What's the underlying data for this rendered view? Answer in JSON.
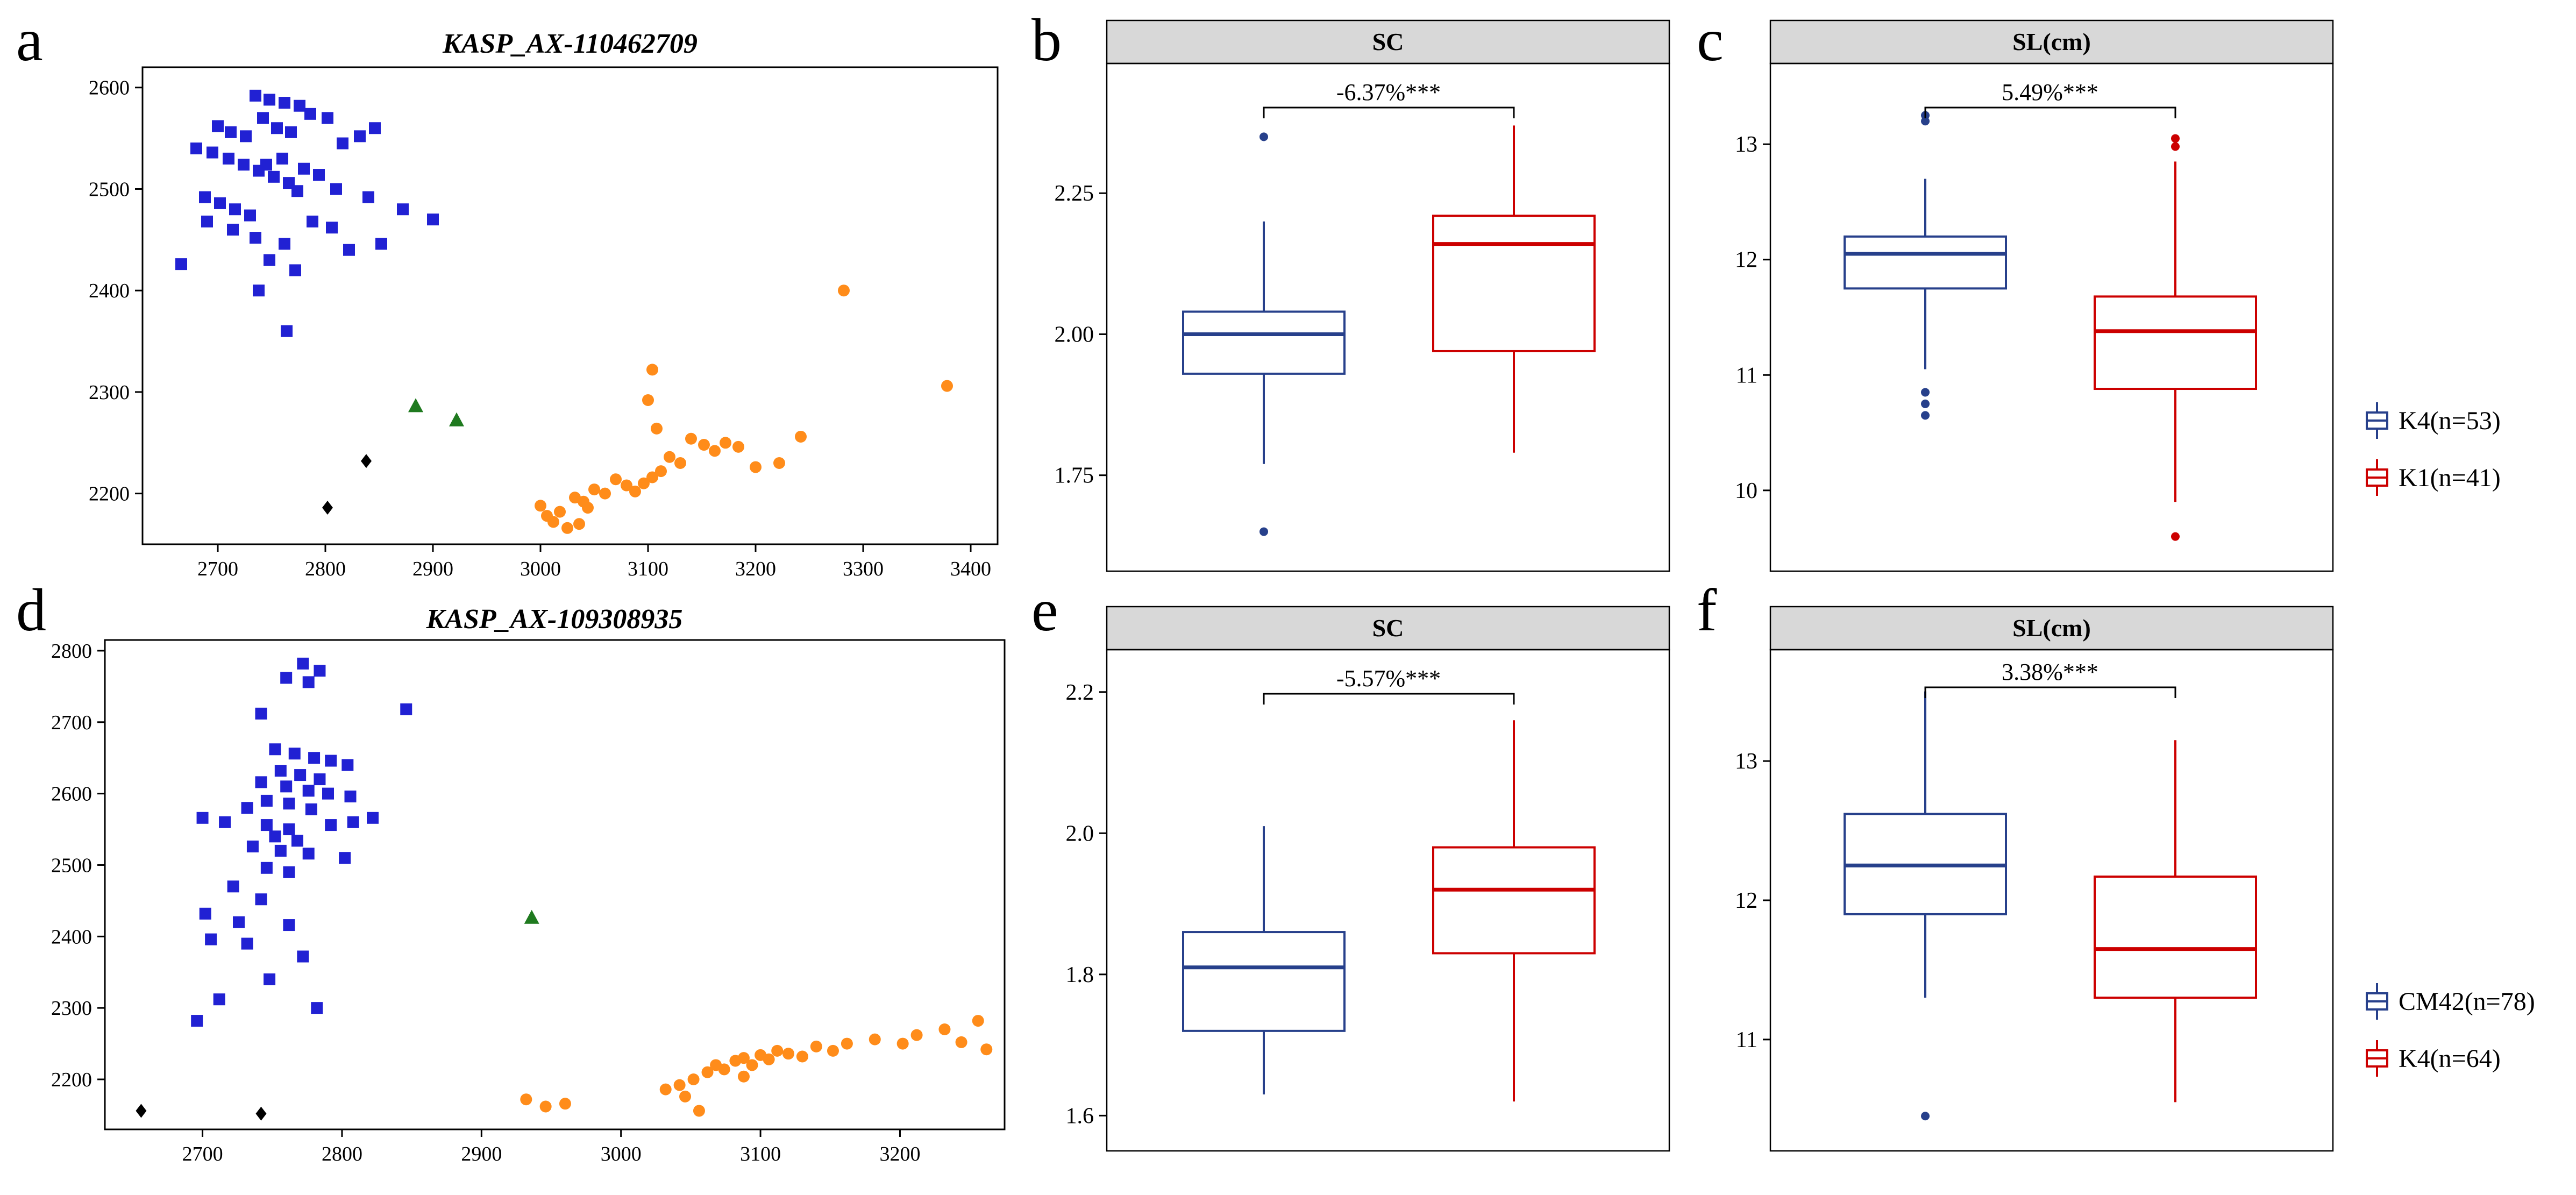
{
  "figure": {
    "letters": {
      "a": "a",
      "b": "b",
      "c": "c",
      "d": "d",
      "e": "e",
      "f": "f"
    },
    "colors": {
      "scatter_blue": "#2121d3",
      "scatter_orange": "#ff8c1a",
      "scatter_green": "#1f7a1f",
      "scatter_black": "#000000",
      "box_blue": "#27408b",
      "box_red": "#cc0000",
      "header_grey": "#d8d8d8"
    },
    "legend_top": {
      "entries": [
        {
          "label": "K4(n=53)",
          "color": "#27408b"
        },
        {
          "label": "K1(n=41)",
          "color": "#cc0000"
        }
      ]
    },
    "legend_bottom": {
      "entries": [
        {
          "label": "CM42(n=78)",
          "color": "#27408b"
        },
        {
          "label": "K4(n=64)",
          "color": "#cc0000"
        }
      ]
    }
  },
  "chart_data": [
    {
      "panel": "a",
      "type": "scatter",
      "title": "KASP_AX-110462709",
      "xlim": [
        2630,
        3425
      ],
      "ylim": [
        2150,
        2620
      ],
      "xticks": [
        2700,
        2800,
        2900,
        3000,
        3100,
        3200,
        3300,
        3400
      ],
      "yticks": [
        2200,
        2300,
        2400,
        2500,
        2600
      ],
      "series": [
        {
          "name": "blue-squares",
          "marker": "square",
          "color": "#2121d3",
          "points": [
            [
              2735,
              2592
            ],
            [
              2748,
              2588
            ],
            [
              2762,
              2585
            ],
            [
              2776,
              2582
            ],
            [
              2742,
              2570
            ],
            [
              2700,
              2562
            ],
            [
              2712,
              2556
            ],
            [
              2726,
              2552
            ],
            [
              2755,
              2560
            ],
            [
              2768,
              2556
            ],
            [
              2786,
              2574
            ],
            [
              2802,
              2570
            ],
            [
              2816,
              2545
            ],
            [
              2832,
              2552
            ],
            [
              2846,
              2560
            ],
            [
              2680,
              2540
            ],
            [
              2695,
              2536
            ],
            [
              2710,
              2530
            ],
            [
              2724,
              2524
            ],
            [
              2738,
              2518
            ],
            [
              2752,
              2512
            ],
            [
              2766,
              2506
            ],
            [
              2780,
              2520
            ],
            [
              2794,
              2514
            ],
            [
              2810,
              2500
            ],
            [
              2840,
              2492
            ],
            [
              2872,
              2480
            ],
            [
              2900,
              2470
            ],
            [
              2688,
              2492
            ],
            [
              2702,
              2486
            ],
            [
              2716,
              2480
            ],
            [
              2730,
              2474
            ],
            [
              2745,
              2524
            ],
            [
              2760,
              2530
            ],
            [
              2774,
              2498
            ],
            [
              2690,
              2468
            ],
            [
              2714,
              2460
            ],
            [
              2735,
              2452
            ],
            [
              2762,
              2446
            ],
            [
              2788,
              2468
            ],
            [
              2806,
              2462
            ],
            [
              2822,
              2440
            ],
            [
              2852,
              2446
            ],
            [
              2748,
              2430
            ],
            [
              2772,
              2420
            ],
            [
              2666,
              2426
            ],
            [
              2738,
              2400
            ],
            [
              2764,
              2360
            ]
          ]
        },
        {
          "name": "orange-circles",
          "marker": "circle",
          "color": "#ff8c1a",
          "points": [
            [
              3000,
              2188
            ],
            [
              3006,
              2178
            ],
            [
              3012,
              2172
            ],
            [
              3018,
              2182
            ],
            [
              3025,
              2166
            ],
            [
              3032,
              2196
            ],
            [
              3040,
              2192
            ],
            [
              3050,
              2204
            ],
            [
              3060,
              2200
            ],
            [
              3070,
              2214
            ],
            [
              3080,
              2208
            ],
            [
              3088,
              2202
            ],
            [
              3096,
              2210
            ],
            [
              3104,
              2216
            ],
            [
              3112,
              2222
            ],
            [
              3120,
              2236
            ],
            [
              3130,
              2230
            ],
            [
              3108,
              2264
            ],
            [
              3100,
              2292
            ],
            [
              3104,
              2322
            ],
            [
              3140,
              2254
            ],
            [
              3152,
              2248
            ],
            [
              3162,
              2242
            ],
            [
              3172,
              2250
            ],
            [
              3184,
              2246
            ],
            [
              3200,
              2226
            ],
            [
              3222,
              2230
            ],
            [
              3242,
              2256
            ],
            [
              3282,
              2400
            ],
            [
              3378,
              2306
            ],
            [
              3036,
              2170
            ],
            [
              3044,
              2186
            ]
          ]
        },
        {
          "name": "green-triangles",
          "marker": "triangle",
          "color": "#1f7a1f",
          "points": [
            [
              2884,
              2286
            ],
            [
              2922,
              2272
            ]
          ]
        },
        {
          "name": "black-diamonds",
          "marker": "diamond",
          "color": "#000000",
          "points": [
            [
              2802,
              2186
            ],
            [
              2838,
              2232
            ]
          ]
        }
      ]
    },
    {
      "panel": "b",
      "type": "box",
      "title": "SC",
      "annotation": "-6.37%***",
      "ylim": [
        1.58,
        2.48
      ],
      "yticks": [
        1.75,
        2.0,
        2.25
      ],
      "ytick_labels": [
        "1.75",
        "2.00",
        "2.25"
      ],
      "groups": [
        {
          "name": "K4",
          "color": "#27408b",
          "q1": 1.93,
          "median": 2.0,
          "q3": 2.04,
          "whisker_low": 1.77,
          "whisker_high": 2.2,
          "outliers": [
            2.35,
            1.65
          ]
        },
        {
          "name": "K1",
          "color": "#cc0000",
          "q1": 1.97,
          "median": 2.16,
          "q3": 2.21,
          "whisker_low": 1.79,
          "whisker_high": 2.37,
          "outliers": []
        }
      ]
    },
    {
      "panel": "c",
      "type": "box",
      "title": "SL(cm)",
      "annotation": "5.49%***",
      "ylim": [
        9.3,
        13.7
      ],
      "yticks": [
        10,
        11,
        12,
        13
      ],
      "ytick_labels": [
        "10",
        "11",
        "12",
        "13"
      ],
      "groups": [
        {
          "name": "K4",
          "color": "#27408b",
          "q1": 11.75,
          "median": 12.05,
          "q3": 12.2,
          "whisker_low": 11.05,
          "whisker_high": 12.7,
          "outliers": [
            13.25,
            13.2,
            10.85,
            10.75,
            10.65
          ]
        },
        {
          "name": "K1",
          "color": "#cc0000",
          "q1": 10.88,
          "median": 11.38,
          "q3": 11.68,
          "whisker_low": 9.9,
          "whisker_high": 12.85,
          "outliers": [
            13.05,
            12.98,
            9.6
          ]
        }
      ]
    },
    {
      "panel": "d",
      "type": "scatter",
      "title": "KASP_AX-109308935",
      "xlim": [
        2630,
        3275
      ],
      "ylim": [
        2130,
        2815
      ],
      "xticks": [
        2700,
        2800,
        2900,
        3000,
        3100,
        3200
      ],
      "yticks": [
        2200,
        2300,
        2400,
        2500,
        2600,
        2700,
        2800
      ],
      "series": [
        {
          "name": "blue-squares",
          "marker": "square",
          "color": "#2121d3",
          "points": [
            [
              2772,
              2782
            ],
            [
              2784,
              2772
            ],
            [
              2760,
              2762
            ],
            [
              2776,
              2756
            ],
            [
              2742,
              2712
            ],
            [
              2846,
              2718
            ],
            [
              2752,
              2662
            ],
            [
              2766,
              2656
            ],
            [
              2780,
              2650
            ],
            [
              2792,
              2646
            ],
            [
              2804,
              2640
            ],
            [
              2756,
              2632
            ],
            [
              2770,
              2626
            ],
            [
              2784,
              2620
            ],
            [
              2742,
              2616
            ],
            [
              2760,
              2610
            ],
            [
              2776,
              2604
            ],
            [
              2790,
              2600
            ],
            [
              2806,
              2596
            ],
            [
              2746,
              2590
            ],
            [
              2762,
              2586
            ],
            [
              2732,
              2580
            ],
            [
              2778,
              2578
            ],
            [
              2700,
              2566
            ],
            [
              2716,
              2560
            ],
            [
              2746,
              2556
            ],
            [
              2762,
              2550
            ],
            [
              2792,
              2556
            ],
            [
              2808,
              2560
            ],
            [
              2822,
              2566
            ],
            [
              2752,
              2540
            ],
            [
              2768,
              2534
            ],
            [
              2736,
              2526
            ],
            [
              2756,
              2520
            ],
            [
              2776,
              2516
            ],
            [
              2802,
              2510
            ],
            [
              2746,
              2496
            ],
            [
              2762,
              2490
            ],
            [
              2722,
              2470
            ],
            [
              2742,
              2452
            ],
            [
              2702,
              2432
            ],
            [
              2726,
              2420
            ],
            [
              2762,
              2416
            ],
            [
              2706,
              2396
            ],
            [
              2732,
              2390
            ],
            [
              2772,
              2372
            ],
            [
              2748,
              2340
            ],
            [
              2712,
              2312
            ],
            [
              2696,
              2282
            ],
            [
              2782,
              2300
            ]
          ]
        },
        {
          "name": "orange-circles",
          "marker": "circle",
          "color": "#ff8c1a",
          "points": [
            [
              2932,
              2172
            ],
            [
              2946,
              2162
            ],
            [
              2960,
              2166
            ],
            [
              3032,
              2186
            ],
            [
              3042,
              2192
            ],
            [
              3052,
              2200
            ],
            [
              3062,
              2210
            ],
            [
              3068,
              2220
            ],
            [
              3074,
              2214
            ],
            [
              3082,
              2226
            ],
            [
              3088,
              2230
            ],
            [
              3094,
              2220
            ],
            [
              3100,
              2234
            ],
            [
              3106,
              2228
            ],
            [
              3112,
              2240
            ],
            [
              3120,
              2236
            ],
            [
              3130,
              2232
            ],
            [
              3140,
              2246
            ],
            [
              3152,
              2240
            ],
            [
              3162,
              2250
            ],
            [
              3182,
              2256
            ],
            [
              3202,
              2250
            ],
            [
              3212,
              2262
            ],
            [
              3232,
              2270
            ],
            [
              3244,
              2252
            ],
            [
              3256,
              2282
            ],
            [
              3262,
              2242
            ],
            [
              3056,
              2156
            ],
            [
              3046,
              2176
            ],
            [
              3088,
              2204
            ]
          ]
        },
        {
          "name": "green-triangles",
          "marker": "triangle",
          "color": "#1f7a1f",
          "points": [
            [
              2936,
              2426
            ]
          ]
        },
        {
          "name": "black-diamonds",
          "marker": "diamond",
          "color": "#000000",
          "points": [
            [
              2656,
              2156
            ],
            [
              2742,
              2152
            ]
          ]
        }
      ]
    },
    {
      "panel": "e",
      "type": "box",
      "title": "SC",
      "annotation": "-5.57%***",
      "ylim": [
        1.55,
        2.26
      ],
      "yticks": [
        1.6,
        1.8,
        2.0,
        2.2
      ],
      "ytick_labels": [
        "1.6",
        "1.8",
        "2.0",
        "2.2"
      ],
      "groups": [
        {
          "name": "CM42",
          "color": "#27408b",
          "q1": 1.72,
          "median": 1.81,
          "q3": 1.86,
          "whisker_low": 1.63,
          "whisker_high": 2.01,
          "outliers": []
        },
        {
          "name": "K4",
          "color": "#cc0000",
          "q1": 1.83,
          "median": 1.92,
          "q3": 1.98,
          "whisker_low": 1.62,
          "whisker_high": 2.16,
          "outliers": []
        }
      ]
    },
    {
      "panel": "f",
      "type": "box",
      "title": "SL(cm)",
      "annotation": "3.38%***",
      "ylim": [
        10.2,
        13.8
      ],
      "yticks": [
        11,
        12,
        13
      ],
      "ytick_labels": [
        "11",
        "12",
        "13"
      ],
      "groups": [
        {
          "name": "CM42",
          "color": "#27408b",
          "q1": 11.9,
          "median": 12.25,
          "q3": 12.62,
          "whisker_low": 11.3,
          "whisker_high": 13.5,
          "outliers": [
            10.45
          ]
        },
        {
          "name": "K4",
          "color": "#cc0000",
          "q1": 11.3,
          "median": 11.65,
          "q3": 12.17,
          "whisker_low": 10.55,
          "whisker_high": 13.15,
          "outliers": []
        }
      ]
    }
  ]
}
